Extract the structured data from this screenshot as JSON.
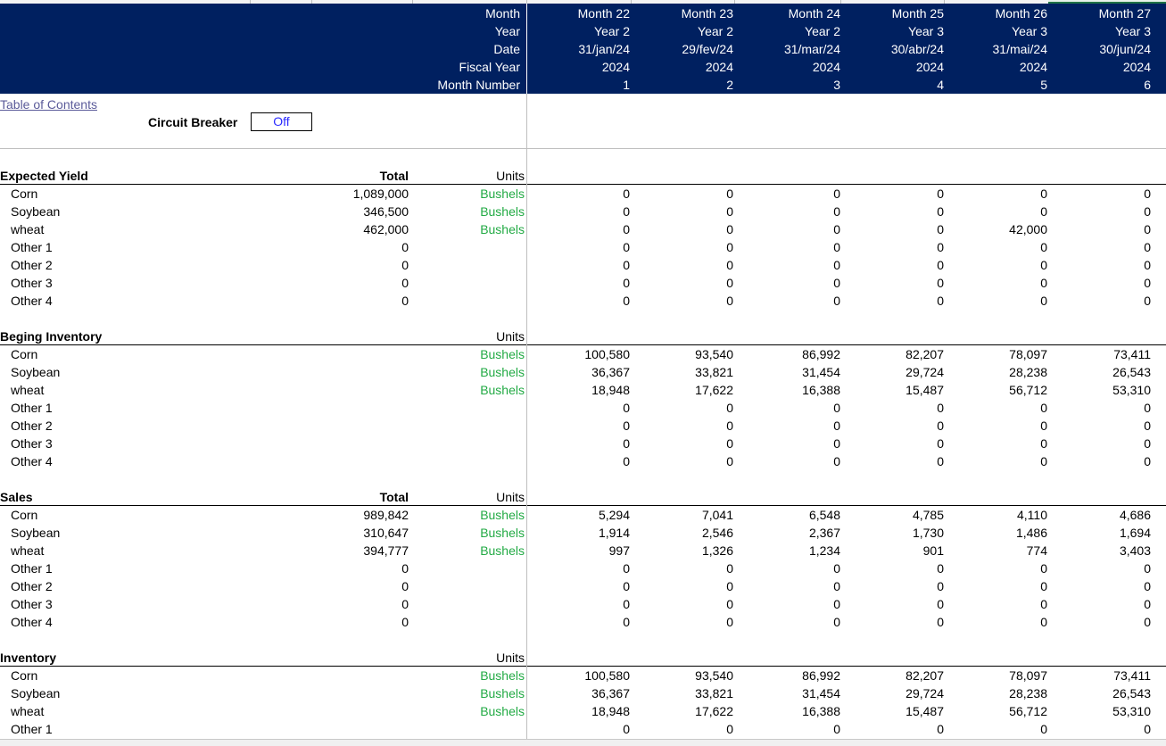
{
  "header": {
    "labels": [
      "Month",
      "Year",
      "Date",
      "Fiscal Year",
      "Month Number"
    ],
    "columns": [
      {
        "month": "Month 22",
        "year": "Year 2",
        "date": "31/jan/24",
        "fiscal": "2024",
        "num": "1"
      },
      {
        "month": "Month 23",
        "year": "Year 2",
        "date": "29/fev/24",
        "fiscal": "2024",
        "num": "2"
      },
      {
        "month": "Month 24",
        "year": "Year 2",
        "date": "31/mar/24",
        "fiscal": "2024",
        "num": "3"
      },
      {
        "month": "Month 25",
        "year": "Year 3",
        "date": "30/abr/24",
        "fiscal": "2024",
        "num": "4"
      },
      {
        "month": "Month 26",
        "year": "Year 3",
        "date": "31/mai/24",
        "fiscal": "2024",
        "num": "5"
      },
      {
        "month": "Month 27",
        "year": "Year 3",
        "date": "30/jun/24",
        "fiscal": "2024",
        "num": "6"
      }
    ]
  },
  "toc_link": "Table of Contents",
  "circuit_breaker": {
    "label": "Circuit Breaker",
    "value": "Off"
  },
  "sections": [
    {
      "title": "Expected Yield",
      "total_label": "Total",
      "units_label": "Units",
      "rows": [
        {
          "name": "Corn",
          "total": "1,089,000",
          "unit": "Bushels",
          "values": [
            "0",
            "0",
            "0",
            "0",
            "0",
            "0"
          ]
        },
        {
          "name": "Soybean",
          "total": "346,500",
          "unit": "Bushels",
          "values": [
            "0",
            "0",
            "0",
            "0",
            "0",
            "0"
          ]
        },
        {
          "name": "wheat",
          "total": "462,000",
          "unit": "Bushels",
          "values": [
            "0",
            "0",
            "0",
            "0",
            "42,000",
            "0"
          ]
        },
        {
          "name": "Other 1",
          "total": "0",
          "unit": "",
          "values": [
            "0",
            "0",
            "0",
            "0",
            "0",
            "0"
          ]
        },
        {
          "name": "Other 2",
          "total": "0",
          "unit": "",
          "values": [
            "0",
            "0",
            "0",
            "0",
            "0",
            "0"
          ]
        },
        {
          "name": "Other 3",
          "total": "0",
          "unit": "",
          "values": [
            "0",
            "0",
            "0",
            "0",
            "0",
            "0"
          ]
        },
        {
          "name": "Other 4",
          "total": "0",
          "unit": "",
          "values": [
            "0",
            "0",
            "0",
            "0",
            "0",
            "0"
          ]
        }
      ]
    },
    {
      "title": "Beging Inventory",
      "total_label": "",
      "units_label": "Units",
      "rows": [
        {
          "name": "Corn",
          "total": "",
          "unit": "Bushels",
          "values": [
            "100,580",
            "93,540",
            "86,992",
            "82,207",
            "78,097",
            "73,411"
          ]
        },
        {
          "name": "Soybean",
          "total": "",
          "unit": "Bushels",
          "values": [
            "36,367",
            "33,821",
            "31,454",
            "29,724",
            "28,238",
            "26,543"
          ]
        },
        {
          "name": "wheat",
          "total": "",
          "unit": "Bushels",
          "values": [
            "18,948",
            "17,622",
            "16,388",
            "15,487",
            "56,712",
            "53,310"
          ]
        },
        {
          "name": "Other 1",
          "total": "",
          "unit": "",
          "values": [
            "0",
            "0",
            "0",
            "0",
            "0",
            "0"
          ]
        },
        {
          "name": "Other 2",
          "total": "",
          "unit": "",
          "values": [
            "0",
            "0",
            "0",
            "0",
            "0",
            "0"
          ]
        },
        {
          "name": "Other 3",
          "total": "",
          "unit": "",
          "values": [
            "0",
            "0",
            "0",
            "0",
            "0",
            "0"
          ]
        },
        {
          "name": "Other 4",
          "total": "",
          "unit": "",
          "values": [
            "0",
            "0",
            "0",
            "0",
            "0",
            "0"
          ]
        }
      ]
    },
    {
      "title": "Sales",
      "total_label": "Total",
      "units_label": "Units",
      "rows": [
        {
          "name": "Corn",
          "total": "989,842",
          "unit": "Bushels",
          "values": [
            "5,294",
            "7,041",
            "6,548",
            "4,785",
            "4,110",
            "4,686"
          ]
        },
        {
          "name": "Soybean",
          "total": "310,647",
          "unit": "Bushels",
          "values": [
            "1,914",
            "2,546",
            "2,367",
            "1,730",
            "1,486",
            "1,694"
          ]
        },
        {
          "name": "wheat",
          "total": "394,777",
          "unit": "Bushels",
          "values": [
            "997",
            "1,326",
            "1,234",
            "901",
            "774",
            "3,403"
          ]
        },
        {
          "name": "Other 1",
          "total": "0",
          "unit": "",
          "values": [
            "0",
            "0",
            "0",
            "0",
            "0",
            "0"
          ]
        },
        {
          "name": "Other 2",
          "total": "0",
          "unit": "",
          "values": [
            "0",
            "0",
            "0",
            "0",
            "0",
            "0"
          ]
        },
        {
          "name": "Other 3",
          "total": "0",
          "unit": "",
          "values": [
            "0",
            "0",
            "0",
            "0",
            "0",
            "0"
          ]
        },
        {
          "name": "Other 4",
          "total": "0",
          "unit": "",
          "values": [
            "0",
            "0",
            "0",
            "0",
            "0",
            "0"
          ]
        }
      ]
    },
    {
      "title": "Inventory",
      "total_label": "",
      "units_label": "Units",
      "rows": [
        {
          "name": "Corn",
          "total": "",
          "unit": "Bushels",
          "values": [
            "100,580",
            "93,540",
            "86,992",
            "82,207",
            "78,097",
            "73,411"
          ]
        },
        {
          "name": "Soybean",
          "total": "",
          "unit": "Bushels",
          "values": [
            "36,367",
            "33,821",
            "31,454",
            "29,724",
            "28,238",
            "26,543"
          ]
        },
        {
          "name": "wheat",
          "total": "",
          "unit": "Bushels",
          "values": [
            "18,948",
            "17,622",
            "16,388",
            "15,487",
            "56,712",
            "53,310"
          ]
        },
        {
          "name": "Other 1",
          "total": "",
          "unit": "",
          "values": [
            "0",
            "0",
            "0",
            "0",
            "0",
            "0"
          ]
        }
      ]
    }
  ],
  "colors": {
    "header_bg": "#002060",
    "unit_text": "#22aa44",
    "link": "#5b5b9a",
    "input_text": "#2a2aff"
  }
}
